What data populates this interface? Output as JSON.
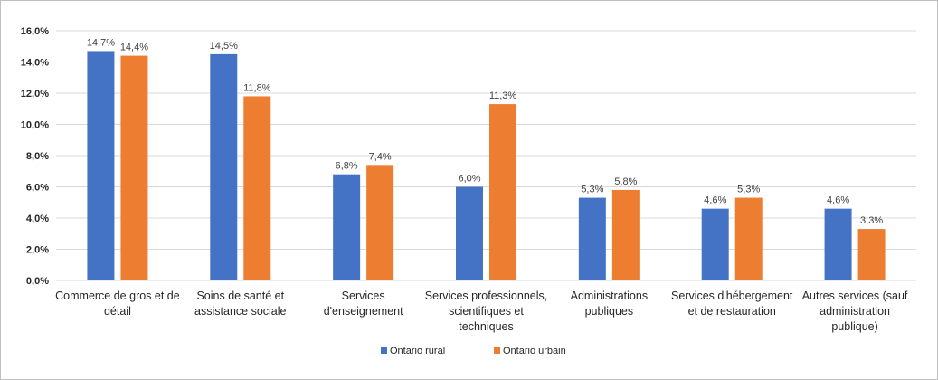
{
  "chart_data": {
    "type": "bar",
    "title": "",
    "xlabel": "",
    "ylabel": "",
    "ylim": [
      0,
      16
    ],
    "y_ticks": [
      0,
      2,
      4,
      6,
      8,
      10,
      12,
      14,
      16
    ],
    "y_tick_labels": [
      "0,0%",
      "2,0%",
      "4,0%",
      "6,0%",
      "8,0%",
      "10,0%",
      "12,0%",
      "14,0%",
      "16,0%"
    ],
    "grid": true,
    "legend_position": "bottom",
    "categories": [
      [
        "Commerce de gros et de",
        "détail"
      ],
      [
        "Soins de santé et",
        "assistance sociale"
      ],
      [
        "Services",
        "d'enseignement"
      ],
      [
        "Services professionnels,",
        "scientifiques et",
        "techniques"
      ],
      [
        "Administrations",
        "publiques"
      ],
      [
        "Services d'hébergement",
        "et de restauration"
      ],
      [
        "Autres services (sauf",
        "administration",
        "publique)"
      ]
    ],
    "series": [
      {
        "name": "Ontario rural",
        "color": "#4472C4",
        "values": [
          14.7,
          14.5,
          6.8,
          6.0,
          5.3,
          4.6,
          4.6
        ],
        "labels": [
          "14,7%",
          "14,5%",
          "6,8%",
          "6,0%",
          "5,3%",
          "4,6%",
          "4,6%"
        ]
      },
      {
        "name": "Ontario urbain",
        "color": "#ED7D31",
        "values": [
          14.4,
          11.8,
          7.4,
          11.3,
          5.8,
          5.3,
          3.3
        ],
        "labels": [
          "14,4%",
          "11,8%",
          "7,4%",
          "11,3%",
          "5,8%",
          "5,3%",
          "3,3%"
        ]
      }
    ]
  }
}
